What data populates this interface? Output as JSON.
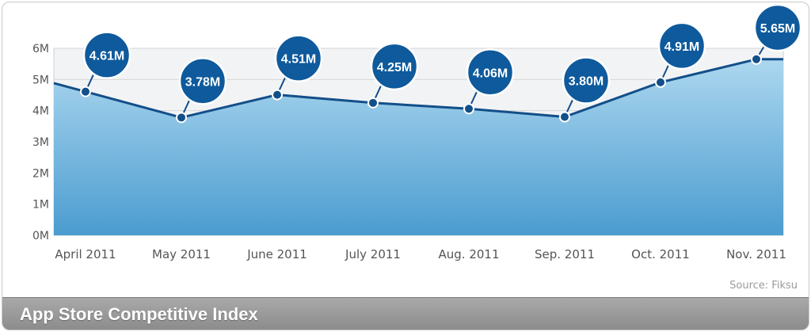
{
  "chart_data": {
    "type": "area",
    "title": "App Store Competitive Index",
    "categories": [
      "April 2011",
      "May 2011",
      "June 2011",
      "July 2011",
      "Aug. 2011",
      "Sep. 2011",
      "Oct. 2011",
      "Nov. 2011"
    ],
    "series": [
      {
        "values": [
          4.61,
          3.78,
          4.51,
          4.25,
          4.06,
          3.8,
          4.91,
          5.65
        ],
        "data_labels": [
          "4.61M",
          "3.78M",
          "4.51M",
          "4.25M",
          "4.06M",
          "3.80M",
          "4.91M",
          "5.65M"
        ]
      }
    ],
    "y_ticks": [
      "0M",
      "1M",
      "2M",
      "3M",
      "4M",
      "5M",
      "6M"
    ],
    "ylim": [
      0,
      6
    ],
    "grid": true,
    "legend": "none",
    "source": "Source: Fiksu",
    "colors": {
      "area_top": "#acd7ef",
      "area_bottom": "#4b9cd0",
      "line": "#134f89",
      "bubble": "#0e5a9c",
      "grid": "#d6d6d6",
      "plot_bg": "#f2f3f5"
    }
  }
}
